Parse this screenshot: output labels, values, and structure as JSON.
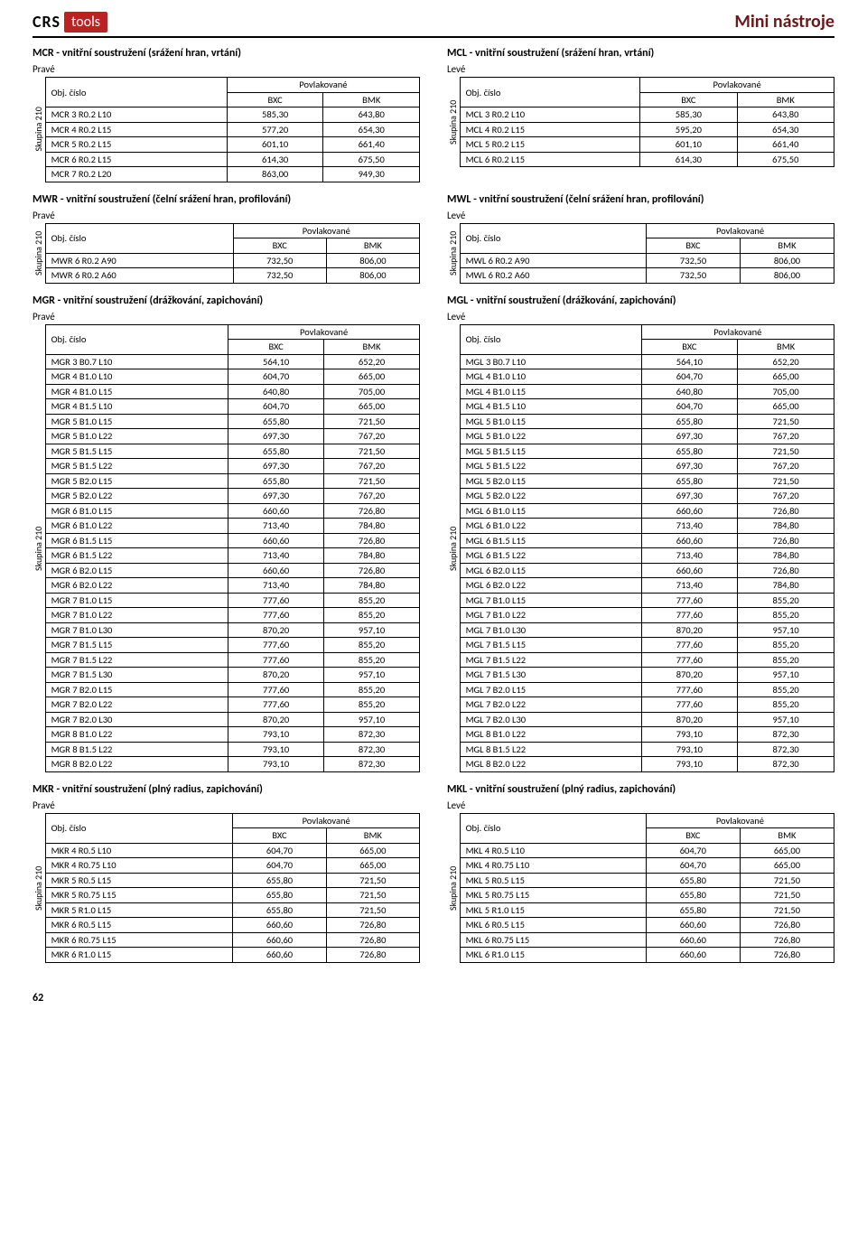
{
  "brand": {
    "crs": "CRS",
    "tools": "tools"
  },
  "page_title": "Mini nástroje",
  "footer_page": "62",
  "labels": {
    "group": "Skupina 210",
    "obj": "Obj. číslo",
    "coated": "Povlakované",
    "bxc": "BXC",
    "bmk": "BMK",
    "right": "Pravé",
    "left": "Levé"
  },
  "sections": [
    {
      "left": {
        "title": "MCR - vnitřní soustružení (srážení hran, vrtání)",
        "side": "right",
        "rows": [
          [
            "MCR 3 R0.2 L10",
            "585,30",
            "643,80"
          ],
          [
            "MCR 4 R0.2 L15",
            "577,20",
            "654,30"
          ],
          [
            "MCR 5 R0.2 L15",
            "601,10",
            "661,40"
          ],
          [
            "MCR 6 R0.2 L15",
            "614,30",
            "675,50"
          ],
          [
            "MCR 7 R0.2 L20",
            "863,00",
            "949,30"
          ]
        ]
      },
      "right": {
        "title": "MCL - vnitřní soustružení (srážení hran, vrtání)",
        "side": "left",
        "rows": [
          [
            "MCL 3 R0.2 L10",
            "585,30",
            "643,80"
          ],
          [
            "MCL 4 R0.2 L15",
            "595,20",
            "654,30"
          ],
          [
            "MCL 5 R0.2 L15",
            "601,10",
            "661,40"
          ],
          [
            "MCL 6 R0.2 L15",
            "614,30",
            "675,50"
          ]
        ]
      }
    },
    {
      "left": {
        "title": "MWR - vnitřní soustružení (čelní srážení hran, profilování)",
        "side": "right",
        "rows": [
          [
            "MWR 6 R0.2 A90",
            "732,50",
            "806,00"
          ],
          [
            "MWR 6 R0.2 A60",
            "732,50",
            "806,00"
          ]
        ]
      },
      "right": {
        "title": "MWL - vnitřní soustružení (čelní srážení hran, profilování)",
        "side": "left",
        "rows": [
          [
            "MWL 6 R0.2 A90",
            "732,50",
            "806,00"
          ],
          [
            "MWL 6 R0.2 A60",
            "732,50",
            "806,00"
          ]
        ]
      }
    },
    {
      "left": {
        "title": "MGR - vnitřní soustružení (drážkování, zapichování)",
        "side": "right",
        "rows": [
          [
            "MGR 3 B0.7 L10",
            "564,10",
            "652,20"
          ],
          [
            "MGR 4 B1.0 L10",
            "604,70",
            "665,00"
          ],
          [
            "MGR 4 B1.0 L15",
            "640,80",
            "705,00"
          ],
          [
            "MGR 4 B1.5 L10",
            "604,70",
            "665,00"
          ],
          [
            "MGR 5 B1.0 L15",
            "655,80",
            "721,50"
          ],
          [
            "MGR 5 B1.0 L22",
            "697,30",
            "767,20"
          ],
          [
            "MGR 5 B1.5 L15",
            "655,80",
            "721,50"
          ],
          [
            "MGR 5 B1.5 L22",
            "697,30",
            "767,20"
          ],
          [
            "MGR 5 B2.0 L15",
            "655,80",
            "721,50"
          ],
          [
            "MGR 5 B2.0 L22",
            "697,30",
            "767,20"
          ],
          [
            "MGR 6 B1.0 L15",
            "660,60",
            "726,80"
          ],
          [
            "MGR 6 B1.0 L22",
            "713,40",
            "784,80"
          ],
          [
            "MGR 6 B1.5 L15",
            "660,60",
            "726,80"
          ],
          [
            "MGR 6 B1.5 L22",
            "713,40",
            "784,80"
          ],
          [
            "MGR 6 B2.0 L15",
            "660,60",
            "726,80"
          ],
          [
            "MGR 6 B2.0 L22",
            "713,40",
            "784,80"
          ],
          [
            "MGR 7 B1.0 L15",
            "777,60",
            "855,20"
          ],
          [
            "MGR 7 B1.0 L22",
            "777,60",
            "855,20"
          ],
          [
            "MGR 7 B1.0 L30",
            "870,20",
            "957,10"
          ],
          [
            "MGR 7 B1.5 L15",
            "777,60",
            "855,20"
          ],
          [
            "MGR 7 B1.5 L22",
            "777,60",
            "855,20"
          ],
          [
            "MGR 7 B1.5 L30",
            "870,20",
            "957,10"
          ],
          [
            "MGR 7 B2.0 L15",
            "777,60",
            "855,20"
          ],
          [
            "MGR 7 B2.0 L22",
            "777,60",
            "855,20"
          ],
          [
            "MGR 7 B2.0 L30",
            "870,20",
            "957,10"
          ],
          [
            "MGR 8 B1.0 L22",
            "793,10",
            "872,30"
          ],
          [
            "MGR 8 B1.5 L22",
            "793,10",
            "872,30"
          ],
          [
            "MGR 8 B2.0 L22",
            "793,10",
            "872,30"
          ]
        ]
      },
      "right": {
        "title": "MGL - vnitřní soustružení (drážkování, zapichování)",
        "side": "left",
        "rows": [
          [
            "MGL 3 B0.7 L10",
            "564,10",
            "652,20"
          ],
          [
            "MGL 4 B1.0 L10",
            "604,70",
            "665,00"
          ],
          [
            "MGL 4 B1.0 L15",
            "640,80",
            "705,00"
          ],
          [
            "MGL 4 B1.5 L10",
            "604,70",
            "665,00"
          ],
          [
            "MGL 5 B1.0 L15",
            "655,80",
            "721,50"
          ],
          [
            "MGL 5 B1.0 L22",
            "697,30",
            "767,20"
          ],
          [
            "MGL 5 B1.5 L15",
            "655,80",
            "721,50"
          ],
          [
            "MGL 5 B1.5 L22",
            "697,30",
            "767,20"
          ],
          [
            "MGL 5 B2.0 L15",
            "655,80",
            "721,50"
          ],
          [
            "MGL 5 B2.0 L22",
            "697,30",
            "767,20"
          ],
          [
            "MGL 6 B1.0 L15",
            "660,60",
            "726,80"
          ],
          [
            "MGL 6 B1.0 L22",
            "713,40",
            "784,80"
          ],
          [
            "MGL 6 B1.5 L15",
            "660,60",
            "726,80"
          ],
          [
            "MGL 6 B1.5 L22",
            "713,40",
            "784,80"
          ],
          [
            "MGL 6 B2.0 L15",
            "660,60",
            "726,80"
          ],
          [
            "MGL 6 B2.0 L22",
            "713,40",
            "784,80"
          ],
          [
            "MGL 7 B1.0 L15",
            "777,60",
            "855,20"
          ],
          [
            "MGL 7 B1.0 L22",
            "777,60",
            "855,20"
          ],
          [
            "MGL 7 B1.0 L30",
            "870,20",
            "957,10"
          ],
          [
            "MGL 7 B1.5 L15",
            "777,60",
            "855,20"
          ],
          [
            "MGL 7 B1.5 L22",
            "777,60",
            "855,20"
          ],
          [
            "MGL 7 B1.5 L30",
            "870,20",
            "957,10"
          ],
          [
            "MGL 7 B2.0 L15",
            "777,60",
            "855,20"
          ],
          [
            "MGL 7 B2.0 L22",
            "777,60",
            "855,20"
          ],
          [
            "MGL 7 B2.0 L30",
            "870,20",
            "957,10"
          ],
          [
            "MGL 8 B1.0 L22",
            "793,10",
            "872,30"
          ],
          [
            "MGL 8 B1.5 L22",
            "793,10",
            "872,30"
          ],
          [
            "MGL 8 B2.0 L22",
            "793,10",
            "872,30"
          ]
        ]
      }
    },
    {
      "left": {
        "title": "MKR - vnitřní soustružení (plný radius, zapichování)",
        "side": "right",
        "rows": [
          [
            "MKR 4 R0.5 L10",
            "604,70",
            "665,00"
          ],
          [
            "MKR 4 R0.75 L10",
            "604,70",
            "665,00"
          ],
          [
            "MKR 5 R0.5 L15",
            "655,80",
            "721,50"
          ],
          [
            "MKR 5 R0.75 L15",
            "655,80",
            "721,50"
          ],
          [
            "MKR 5 R1.0 L15",
            "655,80",
            "721,50"
          ],
          [
            "MKR 6 R0.5 L15",
            "660,60",
            "726,80"
          ],
          [
            "MKR 6 R0.75 L15",
            "660,60",
            "726,80"
          ],
          [
            "MKR 6 R1.0 L15",
            "660,60",
            "726,80"
          ]
        ]
      },
      "right": {
        "title": "MKL - vnitřní soustružení (plný radius, zapichování)",
        "side": "left",
        "rows": [
          [
            "MKL 4 R0.5 L10",
            "604,70",
            "665,00"
          ],
          [
            "MKL 4 R0.75 L10",
            "604,70",
            "665,00"
          ],
          [
            "MKL 5 R0.5 L15",
            "655,80",
            "721,50"
          ],
          [
            "MKL 5 R0.75 L15",
            "655,80",
            "721,50"
          ],
          [
            "MKL 5 R1.0 L15",
            "655,80",
            "721,50"
          ],
          [
            "MKL 6 R0.5 L15",
            "660,60",
            "726,80"
          ],
          [
            "MKL 6 R0.75 L15",
            "660,60",
            "726,80"
          ],
          [
            "MKL 6 R1.0 L15",
            "660,60",
            "726,80"
          ]
        ]
      }
    }
  ]
}
